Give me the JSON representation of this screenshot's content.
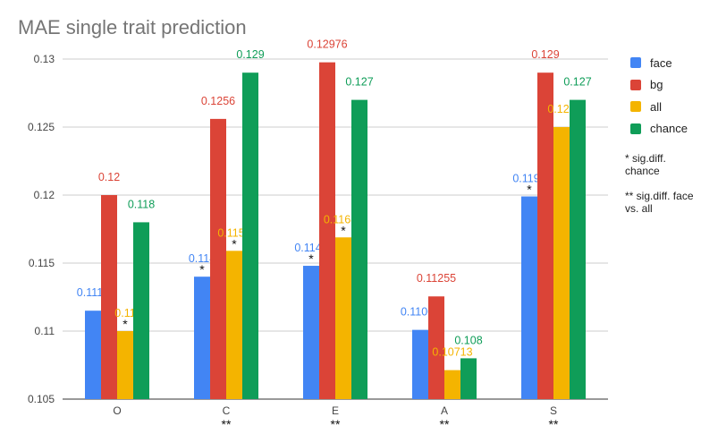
{
  "chart_data": {
    "type": "bar",
    "title": "MAE single trait prediction",
    "categories": [
      "O",
      "C",
      "E",
      "A",
      "S"
    ],
    "category_markers": [
      "",
      "**",
      "**",
      "**",
      "**"
    ],
    "series": [
      {
        "name": "face",
        "color": "#4285F4",
        "values": [
          0.1115,
          0.114,
          0.1148,
          0.11009,
          0.1199
        ],
        "labels": [
          "0.1115",
          "0.114",
          "0.1148",
          "0.11009",
          "0.1199"
        ],
        "markers": [
          "",
          "*",
          "*",
          "",
          "*"
        ]
      },
      {
        "name": "bg",
        "color": "#DB4437",
        "values": [
          0.12,
          0.1256,
          0.12976,
          0.11255,
          0.129
        ],
        "labels": [
          "0.12",
          "0.1256",
          "0.12976",
          "0.11255",
          "0.129"
        ],
        "markers": [
          "",
          "",
          "",
          "",
          ""
        ]
      },
      {
        "name": "all",
        "color": "#F4B400",
        "values": [
          0.11,
          0.1159,
          0.11689,
          0.10713,
          0.125
        ],
        "labels": [
          "0.11",
          "0.1159",
          "0.11689",
          "0.10713",
          "0.125"
        ],
        "markers": [
          "*",
          "*",
          "*",
          "",
          ""
        ]
      },
      {
        "name": "chance",
        "color": "#0F9D58",
        "values": [
          0.118,
          0.129,
          0.127,
          0.108,
          0.127
        ],
        "labels": [
          "0.118",
          "0.129",
          "0.127",
          "0.108",
          "0.127"
        ],
        "markers": [
          "",
          "",
          "",
          "",
          ""
        ]
      }
    ],
    "ylim": [
      0.105,
      0.13
    ],
    "yticks": [
      "0.105",
      "0.11",
      "0.115",
      "0.12",
      "0.125",
      "0.13"
    ],
    "grid": true,
    "legend_position": "right",
    "notes": [
      "* sig.diff. chance",
      "** sig.diff. face vs. all"
    ]
  }
}
